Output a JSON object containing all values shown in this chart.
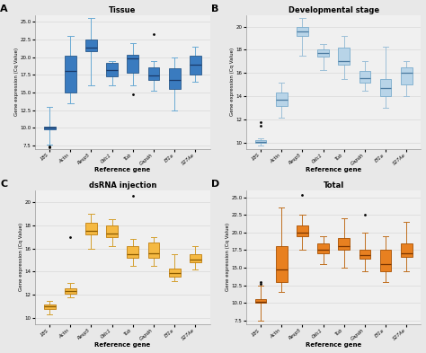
{
  "panels": [
    {
      "label": "A",
      "title": "Tissue",
      "box_facecolor": "#3a7bbf",
      "box_edgecolor": "#2a5a8a",
      "median_color": "#1a3a6a",
      "whisker_color": "#6aaad4",
      "flier_color": "#2a5a8a",
      "ylim": [
        7.0,
        26.0
      ],
      "yticks": [
        7.5,
        10.0,
        12.5,
        15.0,
        17.5,
        20.0,
        22.5,
        25.0
      ],
      "genes": [
        "18S",
        "Actin",
        "Resp5",
        "Odc1",
        "Tub",
        "Gapdh",
        "Ef1a",
        "S27Ae"
      ],
      "boxes": [
        {
          "q1": 9.8,
          "median": 10.0,
          "q3": 10.15,
          "whislo": 7.6,
          "whishi": 13.0,
          "fliers": [
            7.2,
            7.4
          ]
        },
        {
          "q1": 15.0,
          "median": 18.0,
          "q3": 20.2,
          "whislo": 13.5,
          "whishi": 23.0,
          "fliers": []
        },
        {
          "q1": 20.8,
          "median": 21.4,
          "q3": 22.5,
          "whislo": 16.0,
          "whishi": 25.5,
          "fliers": []
        },
        {
          "q1": 17.3,
          "median": 18.2,
          "q3": 19.2,
          "whislo": 16.0,
          "whishi": 19.5,
          "fliers": []
        },
        {
          "q1": 17.8,
          "median": 19.8,
          "q3": 20.4,
          "whislo": 16.0,
          "whishi": 22.0,
          "fliers": [
            14.7
          ]
        },
        {
          "q1": 16.8,
          "median": 17.4,
          "q3": 18.5,
          "whislo": 15.3,
          "whishi": 19.5,
          "fliers": [
            23.3
          ]
        },
        {
          "q1": 15.5,
          "median": 16.8,
          "q3": 18.4,
          "whislo": 12.5,
          "whishi": 20.0,
          "fliers": []
        },
        {
          "q1": 17.5,
          "median": 19.0,
          "q3": 20.2,
          "whislo": 16.5,
          "whishi": 21.5,
          "fliers": []
        }
      ]
    },
    {
      "label": "B",
      "title": "Developmental stage",
      "box_facecolor": "#b8d4e8",
      "box_edgecolor": "#7aaccc",
      "median_color": "#4a7aa0",
      "whisker_color": "#9dc0d8",
      "flier_color": "#4a7aa0",
      "ylim": [
        9.5,
        21.0
      ],
      "yticks": [
        10.0,
        12.0,
        14.0,
        16.0,
        18.0,
        20.0
      ],
      "genes": [
        "18S",
        "Actin",
        "Resp5",
        "Odc1",
        "Tub",
        "Gapdh",
        "Ef1a",
        "S27Ae"
      ],
      "boxes": [
        {
          "q1": 10.0,
          "median": 10.1,
          "q3": 10.25,
          "whislo": 9.8,
          "whishi": 10.4,
          "fliers": [
            11.5,
            11.8
          ]
        },
        {
          "q1": 13.15,
          "median": 13.7,
          "q3": 14.3,
          "whislo": 12.2,
          "whishi": 15.2,
          "fliers": []
        },
        {
          "q1": 19.2,
          "median": 19.6,
          "q3": 20.0,
          "whislo": 17.5,
          "whishi": 20.7,
          "fliers": []
        },
        {
          "q1": 17.4,
          "median": 17.7,
          "q3": 18.0,
          "whislo": 16.3,
          "whishi": 18.5,
          "fliers": []
        },
        {
          "q1": 16.7,
          "median": 17.0,
          "q3": 18.2,
          "whislo": 15.5,
          "whishi": 19.2,
          "fliers": []
        },
        {
          "q1": 15.2,
          "median": 15.6,
          "q3": 16.2,
          "whislo": 14.5,
          "whishi": 17.0,
          "fliers": []
        },
        {
          "q1": 14.0,
          "median": 14.7,
          "q3": 15.5,
          "whislo": 13.0,
          "whishi": 18.3,
          "fliers": []
        },
        {
          "q1": 15.0,
          "median": 16.0,
          "q3": 16.5,
          "whislo": 14.0,
          "whishi": 17.0,
          "fliers": []
        }
      ]
    },
    {
      "label": "C",
      "title": "dsRNA injection",
      "box_facecolor": "#f5b942",
      "box_edgecolor": "#c08010",
      "median_color": "#8a5a00",
      "whisker_color": "#d4a030",
      "flier_color": "#8a5a00",
      "ylim": [
        9.5,
        21.0
      ],
      "yticks": [
        10.0,
        12.0,
        14.0,
        16.0,
        18.0,
        20.0
      ],
      "genes": [
        "18S",
        "Actin",
        "Resp5",
        "Odc1",
        "Tub",
        "Gapdh",
        "Ef1a",
        "S27Ae"
      ],
      "boxes": [
        {
          "q1": 10.8,
          "median": 11.0,
          "q3": 11.15,
          "whislo": 10.3,
          "whishi": 11.5,
          "fliers": []
        },
        {
          "q1": 12.1,
          "median": 12.3,
          "q3": 12.6,
          "whislo": 11.8,
          "whishi": 13.0,
          "fliers": [
            17.0
          ]
        },
        {
          "q1": 17.2,
          "median": 17.5,
          "q3": 18.2,
          "whislo": 16.0,
          "whishi": 19.0,
          "fliers": []
        },
        {
          "q1": 17.0,
          "median": 17.3,
          "q3": 18.0,
          "whislo": 16.2,
          "whishi": 18.5,
          "fliers": []
        },
        {
          "q1": 15.2,
          "median": 15.5,
          "q3": 16.2,
          "whislo": 14.5,
          "whishi": 16.8,
          "fliers": [
            20.5
          ]
        },
        {
          "q1": 15.2,
          "median": 15.6,
          "q3": 16.5,
          "whislo": 14.5,
          "whishi": 17.0,
          "fliers": []
        },
        {
          "q1": 13.6,
          "median": 13.9,
          "q3": 14.3,
          "whislo": 13.2,
          "whishi": 15.5,
          "fliers": []
        },
        {
          "q1": 14.8,
          "median": 15.0,
          "q3": 15.5,
          "whislo": 14.2,
          "whishi": 16.2,
          "fliers": []
        }
      ]
    },
    {
      "label": "D",
      "title": "Total",
      "box_facecolor": "#e88020",
      "box_edgecolor": "#a85000",
      "median_color": "#7a3500",
      "whisker_color": "#c07020",
      "flier_color": "#7a3500",
      "ylim": [
        7.0,
        26.0
      ],
      "yticks": [
        7.5,
        10.0,
        12.5,
        15.0,
        17.5,
        20.0,
        22.5,
        25.0
      ],
      "genes": [
        "18S",
        "Actin",
        "Resp5",
        "Odc1",
        "Tub",
        "Gapdh",
        "Ef1a",
        "S27Ae"
      ],
      "boxes": [
        {
          "q1": 10.0,
          "median": 10.2,
          "q3": 10.5,
          "whislo": 7.5,
          "whishi": 12.5,
          "fliers": [
            13.0,
            12.7
          ]
        },
        {
          "q1": 13.0,
          "median": 14.8,
          "q3": 18.0,
          "whislo": 11.5,
          "whishi": 23.5,
          "fliers": []
        },
        {
          "q1": 19.5,
          "median": 20.0,
          "q3": 21.0,
          "whislo": 17.5,
          "whishi": 22.5,
          "fliers": [
            25.3
          ]
        },
        {
          "q1": 17.0,
          "median": 17.5,
          "q3": 18.5,
          "whislo": 15.5,
          "whishi": 19.5,
          "fliers": []
        },
        {
          "q1": 17.5,
          "median": 18.0,
          "q3": 19.2,
          "whislo": 15.0,
          "whishi": 22.0,
          "fliers": []
        },
        {
          "q1": 16.3,
          "median": 16.8,
          "q3": 17.5,
          "whislo": 14.5,
          "whishi": 20.0,
          "fliers": [
            22.5
          ]
        },
        {
          "q1": 14.5,
          "median": 15.5,
          "q3": 17.5,
          "whislo": 13.0,
          "whishi": 19.5,
          "fliers": []
        },
        {
          "q1": 16.5,
          "median": 17.0,
          "q3": 18.5,
          "whislo": 14.5,
          "whishi": 21.5,
          "fliers": []
        }
      ]
    }
  ],
  "ylabel": "Gene expression (Cq Value)",
  "xlabel": "Reference gene",
  "fig_facecolor": "#e8e8e8",
  "ax_facecolor": "#f0f0f0",
  "grid_color": "#d8d8d8"
}
